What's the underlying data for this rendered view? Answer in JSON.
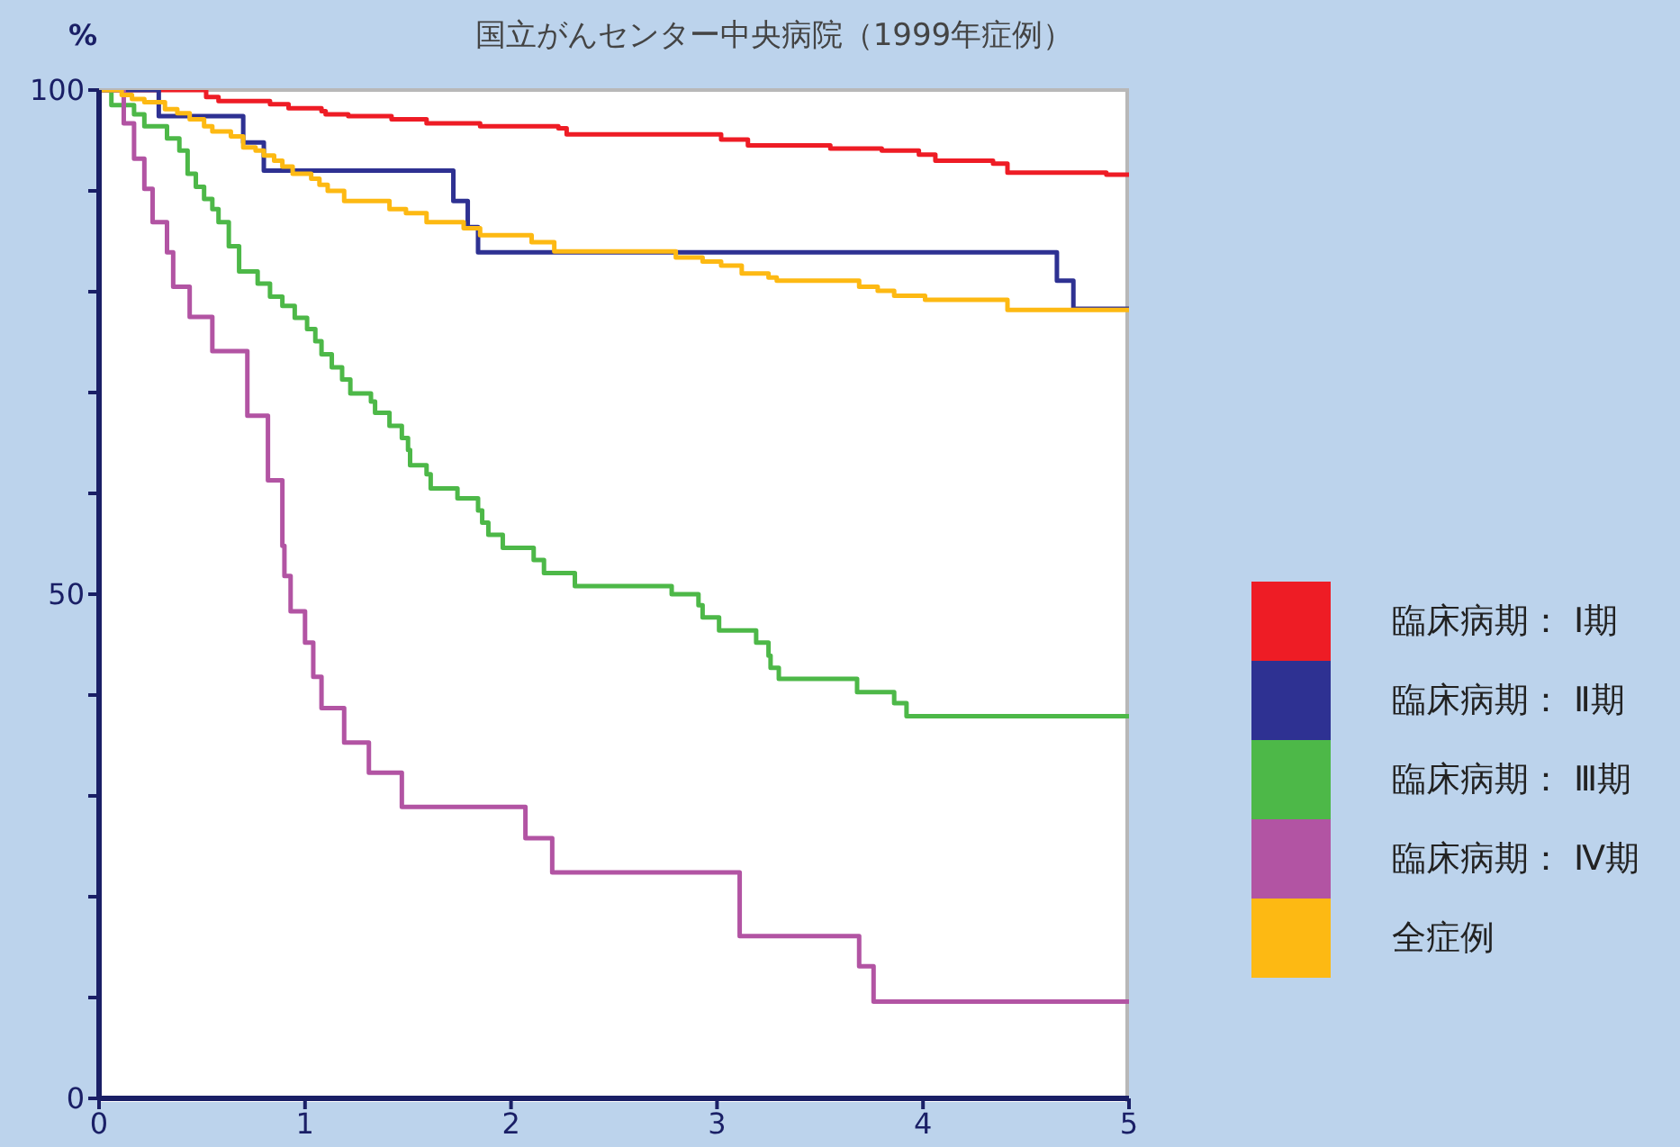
{
  "chart_data": {
    "type": "step",
    "title": "国立がんセンター中央病院（1999年症例）",
    "ylabel": "%",
    "xlim": [
      0,
      5
    ],
    "xticks": [
      0,
      1,
      2,
      3,
      4,
      5
    ],
    "ylim": [
      0,
      100
    ],
    "yticks": [
      0,
      {
        "value": 10,
        "label": null
      },
      {
        "value": 20,
        "label": null
      },
      {
        "value": 30,
        "label": null
      },
      {
        "value": 40,
        "label": null
      },
      50,
      {
        "value": 60,
        "label": null
      },
      {
        "value": 70,
        "label": null
      },
      {
        "value": 80,
        "label": null
      },
      {
        "value": 90,
        "label": null
      },
      100
    ],
    "legend": "right",
    "marker": "none",
    "line_style": "solid",
    "grid": false,
    "series": [
      {
        "name": "臨床病期： Ⅰ期",
        "color": "#ee1c25",
        "x": [
          0,
          0.52,
          0.58,
          0.83,
          0.92,
          1.08,
          1.1,
          1.21,
          1.42,
          1.59,
          1.85,
          2.23,
          2.27,
          3.02,
          3.15,
          3.55,
          3.8,
          3.98,
          4.06,
          4.34,
          4.41,
          4.89,
          5
        ],
        "values": [
          100,
          99.3,
          98.9,
          98.6,
          98.2,
          97.9,
          97.6,
          97.4,
          97.1,
          96.7,
          96.4,
          96.2,
          95.6,
          95.1,
          94.5,
          94.2,
          94.0,
          93.6,
          93.0,
          92.7,
          91.8,
          91.6,
          91.6
        ]
      },
      {
        "name": "臨床病期： Ⅱ期",
        "color": "#2e3192",
        "x": [
          0,
          0.29,
          0.7,
          0.8,
          1.72,
          1.79,
          1.84,
          4.65,
          4.73,
          5
        ],
        "values": [
          100,
          97.4,
          94.8,
          92.0,
          89.0,
          86.4,
          83.9,
          81.1,
          78.3,
          78.3
        ]
      },
      {
        "name": "臨床病期： Ⅲ期",
        "color": "#4db848",
        "x": [
          0,
          0.06,
          0.17,
          0.22,
          0.33,
          0.39,
          0.43,
          0.47,
          0.51,
          0.55,
          0.58,
          0.63,
          0.68,
          0.77,
          0.83,
          0.89,
          0.95,
          1.01,
          1.05,
          1.08,
          1.13,
          1.18,
          1.22,
          1.32,
          1.34,
          1.41,
          1.47,
          1.5,
          1.51,
          1.59,
          1.61,
          1.74,
          1.84,
          1.86,
          1.89,
          1.96,
          2.11,
          2.16,
          2.31,
          2.78,
          2.91,
          2.93,
          3.01,
          3.19,
          3.25,
          3.26,
          3.3,
          3.68,
          3.86,
          3.92,
          5
        ],
        "values": [
          100,
          98.5,
          97.6,
          96.4,
          95.2,
          94.0,
          91.7,
          90.4,
          89.2,
          88.2,
          86.9,
          84.5,
          82.0,
          80.8,
          79.5,
          78.6,
          77.4,
          76.3,
          75.1,
          73.8,
          72.5,
          71.3,
          69.9,
          69.1,
          68.0,
          66.7,
          65.5,
          64.3,
          62.8,
          61.9,
          60.5,
          59.5,
          58.3,
          57.1,
          55.9,
          54.6,
          53.4,
          52.1,
          50.8,
          50.0,
          48.9,
          47.7,
          46.4,
          45.2,
          43.9,
          42.7,
          41.6,
          40.3,
          39.2,
          37.9,
          37.9
        ]
      },
      {
        "name": "臨床病期： Ⅳ期",
        "color": "#b254a3",
        "x": [
          0,
          0.12,
          0.17,
          0.22,
          0.26,
          0.33,
          0.36,
          0.44,
          0.55,
          0.72,
          0.82,
          0.89,
          0.9,
          0.93,
          1.0,
          1.04,
          1.08,
          1.19,
          1.31,
          1.47,
          2.07,
          2.2,
          3.11,
          3.69,
          3.76,
          5
        ],
        "values": [
          100,
          96.7,
          93.2,
          90.2,
          86.9,
          83.9,
          80.5,
          77.5,
          74.1,
          67.7,
          61.3,
          54.8,
          51.8,
          48.3,
          45.2,
          41.8,
          38.7,
          35.3,
          32.3,
          28.9,
          25.8,
          22.4,
          16.1,
          13.1,
          9.6,
          9.6
        ]
      },
      {
        "name": "全症例",
        "color": "#fdb913",
        "x": [
          0,
          0.11,
          0.16,
          0.22,
          0.32,
          0.38,
          0.44,
          0.51,
          0.55,
          0.64,
          0.7,
          0.76,
          0.8,
          0.85,
          0.89,
          0.94,
          1.03,
          1.07,
          1.11,
          1.19,
          1.41,
          1.49,
          1.59,
          1.77,
          1.85,
          2.1,
          2.21,
          2.8,
          2.93,
          3.02,
          3.12,
          3.25,
          3.29,
          3.69,
          3.78,
          3.86,
          4.01,
          4.41,
          5
        ],
        "values": [
          100,
          99.5,
          99.1,
          98.8,
          98.1,
          97.7,
          97.1,
          96.4,
          95.9,
          95.4,
          94.3,
          94.0,
          93.5,
          93.0,
          92.4,
          91.7,
          91.2,
          90.6,
          90.0,
          89.0,
          88.2,
          87.8,
          86.9,
          86.3,
          85.6,
          84.9,
          84.0,
          83.4,
          83.0,
          82.6,
          81.8,
          81.4,
          81.1,
          80.5,
          80.1,
          79.6,
          79.2,
          78.2,
          78.2
        ]
      }
    ]
  }
}
